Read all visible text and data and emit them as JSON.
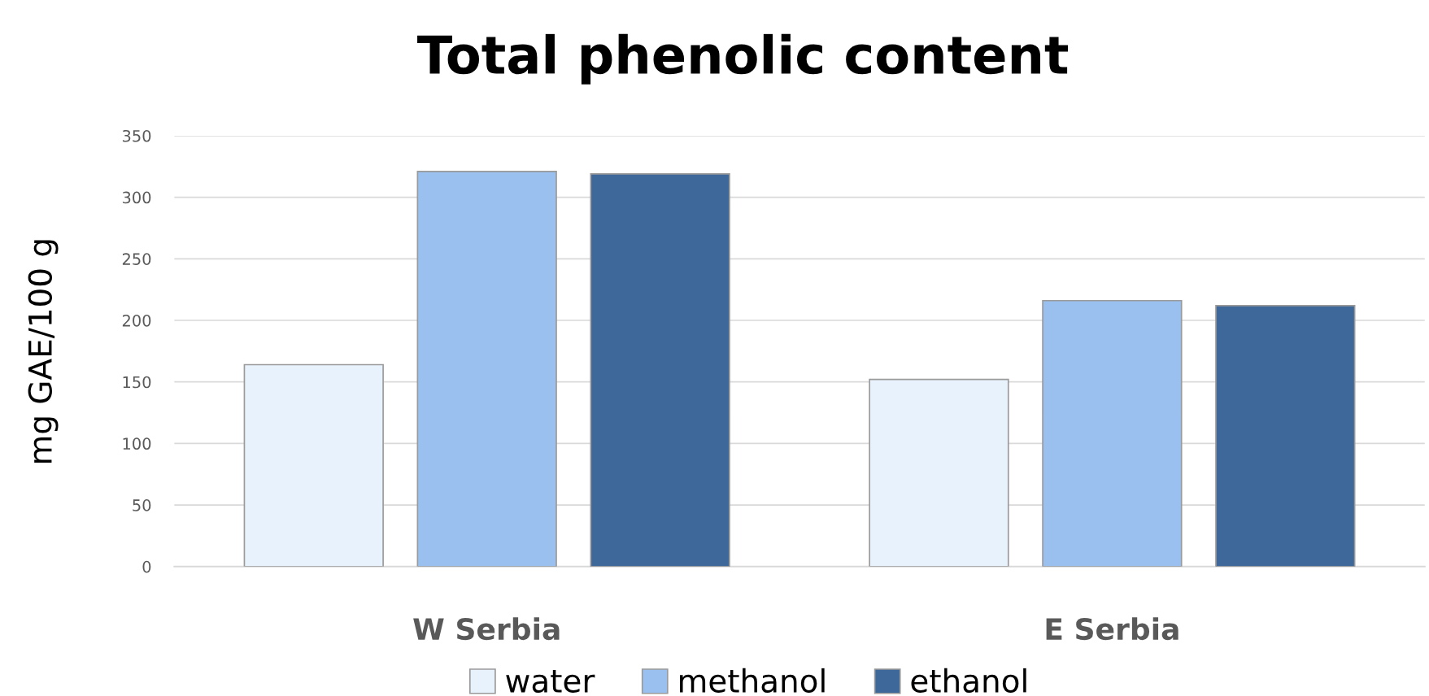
{
  "chart_data": {
    "type": "bar",
    "title": "Total phenolic content",
    "ylabel": "mg GAE/100 g",
    "categories": [
      "W Serbia",
      "E Serbia"
    ],
    "series": [
      {
        "name": "water",
        "color": "#e8f2fc",
        "values": [
          164,
          152
        ]
      },
      {
        "name": "methanol",
        "color": "#99c0ef",
        "values": [
          321,
          216
        ]
      },
      {
        "name": "ethanol",
        "color": "#3d6899",
        "values": [
          319,
          212
        ]
      }
    ],
    "ylim": [
      0,
      350
    ],
    "yticks": [
      0,
      50,
      100,
      150,
      200,
      250,
      300,
      350
    ],
    "grid": "y",
    "legend": "bottom"
  }
}
